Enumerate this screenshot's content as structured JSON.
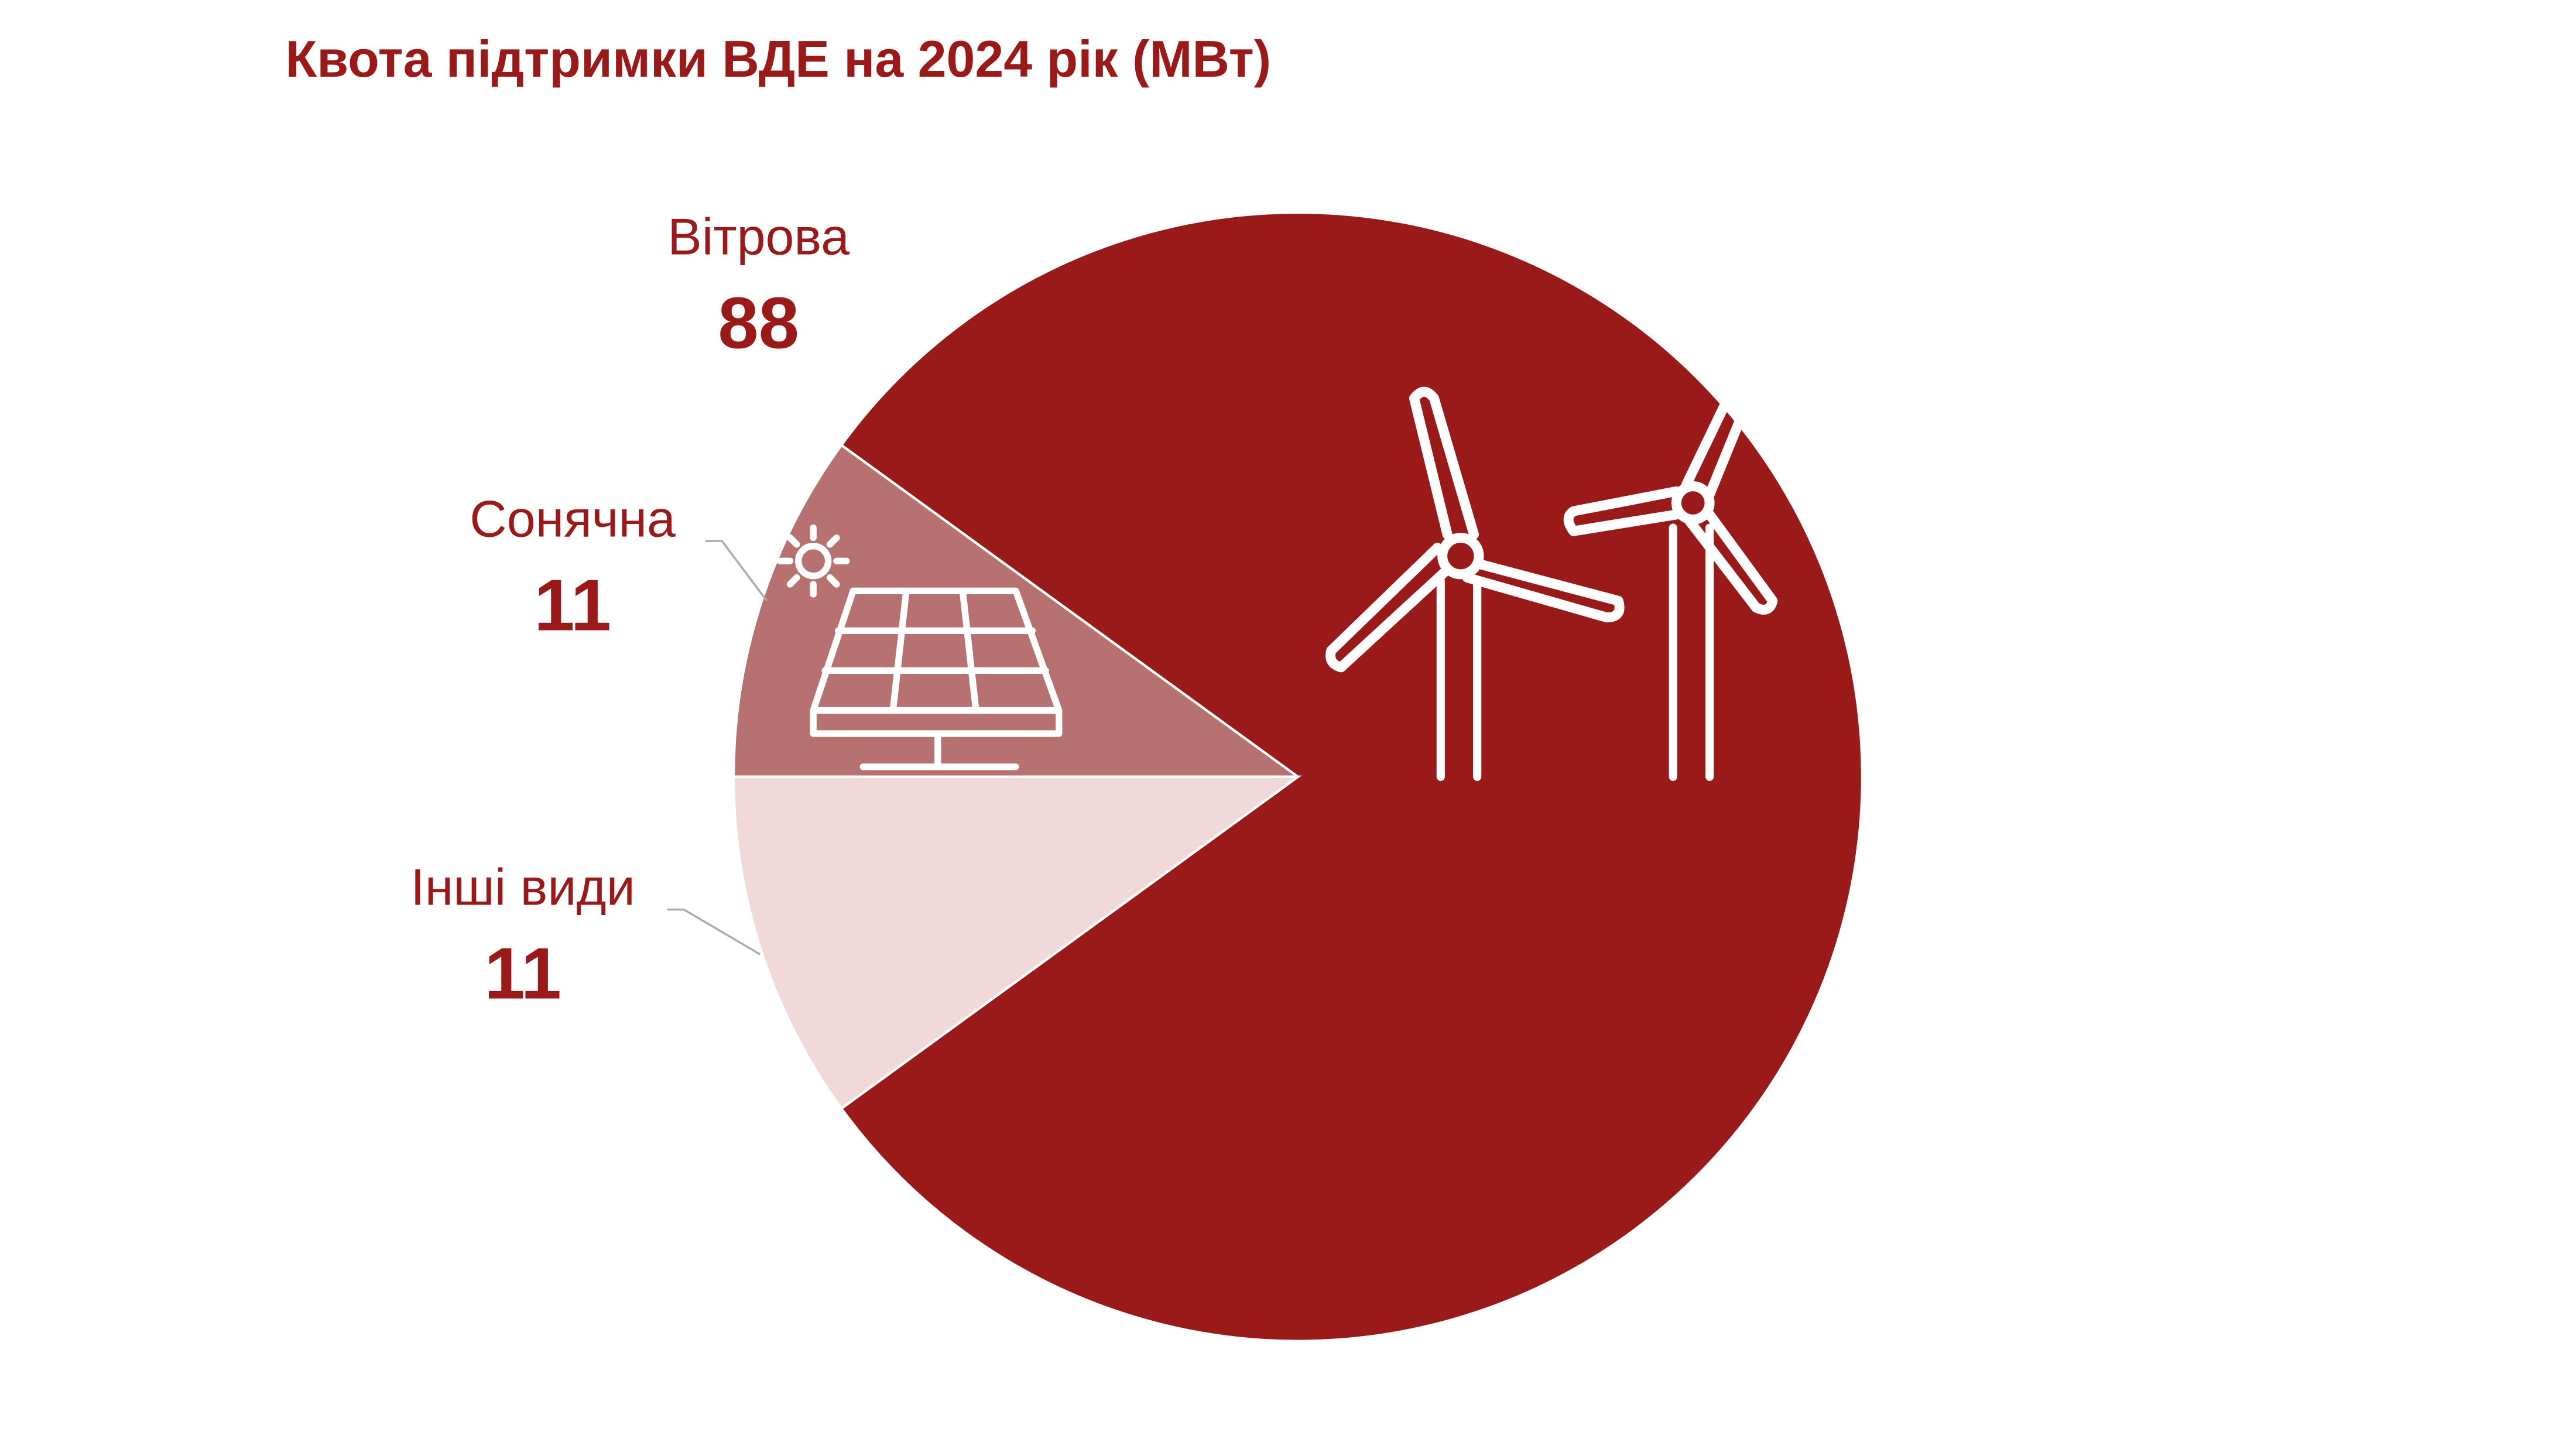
{
  "chart_data": {
    "type": "pie",
    "title": "Квота підтримки ВДЕ на 2024 рік  (МВт)",
    "categories": [
      "Вітрова",
      "Сонячна",
      "Інші види"
    ],
    "values": [
      88,
      11,
      11
    ],
    "colors": [
      "#9a1a1a",
      "#b77171",
      "#f2d9d9"
    ]
  }
}
